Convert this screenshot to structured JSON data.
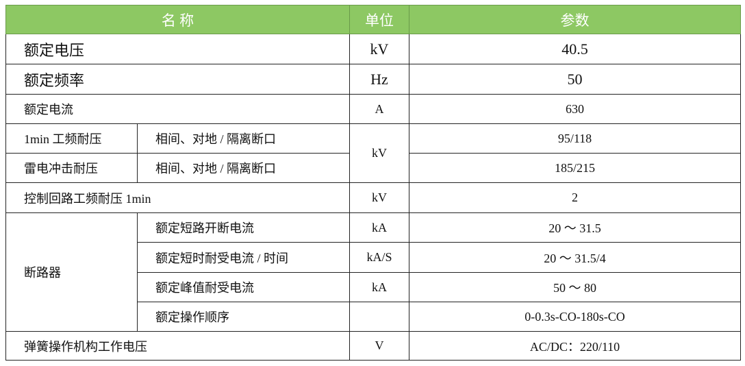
{
  "header": {
    "name": "名 称",
    "unit": "单位",
    "param": "参数"
  },
  "rows": {
    "r1": {
      "name": "额定电压",
      "unit": "kV",
      "value": "40.5"
    },
    "r2": {
      "name": "额定频率",
      "unit": "Hz",
      "value": "50"
    },
    "r3": {
      "name": "额定电流",
      "unit": "A",
      "value": "630"
    },
    "r4": {
      "name": "1min 工频耐压",
      "sub": "相间、对地 / 隔离断口",
      "value": "95/118"
    },
    "r5": {
      "name": "雷电冲击耐压",
      "sub": "相间、对地 / 隔离断口",
      "value": "185/215"
    },
    "r45_unit": "kV",
    "r6": {
      "name": "控制回路工频耐压 1min",
      "unit": "kV",
      "value": "2"
    },
    "breaker": {
      "name": "断路器",
      "items": [
        {
          "name": "额定短路开断电流",
          "unit": "kA",
          "value": "20 ～ 31.5"
        },
        {
          "name": "额定短时耐受电流 / 时间",
          "unit": "kA/S",
          "value": "20 ～ 31.5/4"
        },
        {
          "name": "额定峰值耐受电流",
          "unit": "kA",
          "value": "50 ～ 80"
        },
        {
          "name": "额定操作顺序",
          "unit": "",
          "value": "0-0.3s-CO-180s-CO"
        }
      ]
    },
    "r7": {
      "name": "弹簧操作机构工作电压",
      "unit": "V",
      "value": "AC/DC：220/110"
    }
  }
}
